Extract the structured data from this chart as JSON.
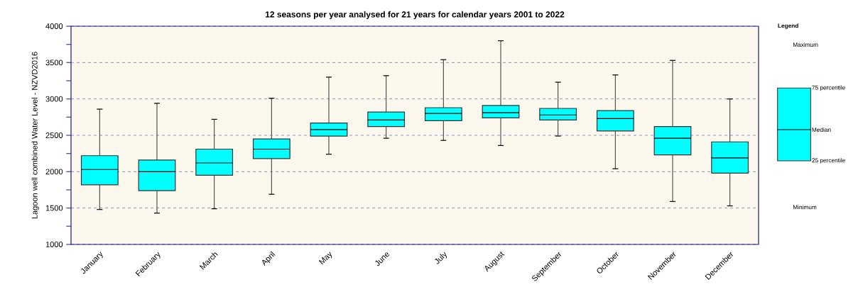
{
  "chart_data": {
    "type": "box",
    "title": "12 seasons per year analysed for 21 years for calendar years 2001 to 2022",
    "ylabel": "Lagoon well combined Water Level - NZVD2016",
    "categories": [
      "January",
      "February",
      "March",
      "April",
      "May",
      "June",
      "July",
      "August",
      "September",
      "October",
      "November",
      "December"
    ],
    "boxes": [
      {
        "low": 1480,
        "q1": 1820,
        "median": 2030,
        "q3": 2220,
        "high": 2860
      },
      {
        "low": 1430,
        "q1": 1740,
        "median": 2000,
        "q3": 2160,
        "high": 2940
      },
      {
        "low": 1490,
        "q1": 1950,
        "median": 2120,
        "q3": 2310,
        "high": 2720
      },
      {
        "low": 1690,
        "q1": 2180,
        "median": 2310,
        "q3": 2450,
        "high": 3010
      },
      {
        "low": 2240,
        "q1": 2490,
        "median": 2580,
        "q3": 2670,
        "high": 3300
      },
      {
        "low": 2460,
        "q1": 2620,
        "median": 2710,
        "q3": 2820,
        "high": 3320
      },
      {
        "low": 2430,
        "q1": 2700,
        "median": 2800,
        "q3": 2880,
        "high": 3540
      },
      {
        "low": 2360,
        "q1": 2740,
        "median": 2810,
        "q3": 2910,
        "high": 3800
      },
      {
        "low": 2490,
        "q1": 2710,
        "median": 2780,
        "q3": 2870,
        "high": 3230
      },
      {
        "low": 2040,
        "q1": 2560,
        "median": 2730,
        "q3": 2840,
        "high": 3330
      },
      {
        "low": 1590,
        "q1": 2230,
        "median": 2460,
        "q3": 2620,
        "high": 3530
      },
      {
        "low": 1530,
        "q1": 1980,
        "median": 2190,
        "q3": 2410,
        "high": 3000
      }
    ],
    "color": "#00ffff",
    "ylim": [
      1000,
      4000
    ],
    "yticks": [
      1000,
      1500,
      2000,
      2500,
      3000,
      3500,
      4000
    ],
    "grid": "y",
    "annotations": [
      "Legend",
      "Maximum",
      "75 percentile",
      "Median",
      "25 percentile",
      "Minimum"
    ]
  }
}
